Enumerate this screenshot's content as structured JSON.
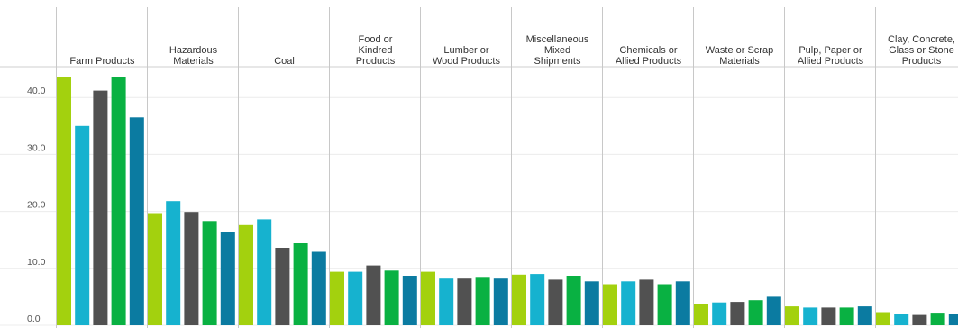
{
  "chart_data": {
    "type": "bar",
    "categories": [
      "Farm Products",
      "Hazardous Materials",
      "Coal",
      "Food or Kindred Products",
      "Lumber or Wood Products",
      "Miscellaneous Mixed Shipments",
      "Chemicals or Allied Products",
      "Waste or Scrap Materials",
      "Pulp, Paper or Allied Products",
      "Clay, Concrete, Glass or Stone Products"
    ],
    "category_header_lines": [
      [
        "Farm Products"
      ],
      [
        "Hazardous",
        "Materials"
      ],
      [
        "Coal"
      ],
      [
        "Food or",
        "Kindred",
        "Products"
      ],
      [
        "Lumber or",
        "Wood Products"
      ],
      [
        "Miscellaneous",
        "Mixed",
        "Shipments"
      ],
      [
        "Chemicals or",
        "Allied Products"
      ],
      [
        "Waste or Scrap",
        "Materials"
      ],
      [
        "Pulp, Paper or",
        "Allied Products"
      ],
      [
        "Clay, Concrete,",
        "Glass or Stone",
        "Products"
      ]
    ],
    "series": [
      {
        "color": "#a3d10e",
        "values": [
          43.6,
          19.7,
          17.6,
          9.4,
          9.4,
          8.9,
          7.2,
          3.8,
          3.3,
          2.3
        ]
      },
      {
        "color": "#16b2cf",
        "values": [
          35.0,
          21.8,
          18.6,
          9.4,
          8.2,
          9.0,
          7.7,
          4.0,
          3.1,
          2.0
        ]
      },
      {
        "color": "#515151",
        "values": [
          41.2,
          19.9,
          13.6,
          10.5,
          8.2,
          8.0,
          8.0,
          4.1,
          3.1,
          1.8
        ]
      },
      {
        "color": "#09b142",
        "values": [
          43.6,
          18.3,
          14.4,
          9.6,
          8.5,
          8.7,
          7.2,
          4.4,
          3.1,
          2.2
        ]
      },
      {
        "color": "#0b7ba1",
        "values": [
          36.5,
          16.4,
          12.9,
          8.7,
          8.2,
          7.7,
          7.7,
          5.0,
          3.3,
          2.0
        ]
      }
    ],
    "y_ticks": [
      "0.0",
      "10.0",
      "20.0",
      "30.0",
      "40.0"
    ],
    "y_tick_values": [
      0,
      10,
      20,
      30,
      40
    ],
    "ylim": [
      0,
      45
    ],
    "grid": true,
    "xlabel": "",
    "ylabel": "",
    "title": ""
  }
}
